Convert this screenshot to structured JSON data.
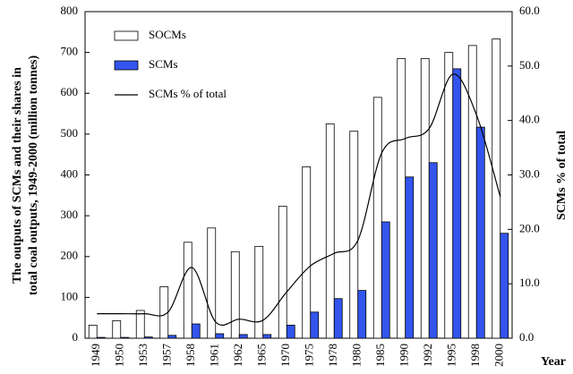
{
  "chart_data": {
    "type": "bar",
    "categories": [
      "1949",
      "1950",
      "1953",
      "1957",
      "1958",
      "1961",
      "1962",
      "1965",
      "1970",
      "1975",
      "1978",
      "1980",
      "1985",
      "1990",
      "1992",
      "1995",
      "1998",
      "2000"
    ],
    "series": [
      {
        "name": "SOCMs",
        "type": "bar",
        "color": "#ffffff",
        "values": [
          32,
          43,
          68,
          126,
          235,
          270,
          212,
          225,
          323,
          420,
          525,
          507,
          590,
          685,
          685,
          700,
          717,
          733
        ]
      },
      {
        "name": "SCMs",
        "type": "bar",
        "color": "#3355ee",
        "values": [
          2,
          2,
          3,
          7,
          35,
          11,
          9,
          9,
          32,
          64,
          97,
          117,
          285,
          395,
          430,
          660,
          517,
          257
        ]
      },
      {
        "name": "SCMs % of total",
        "type": "line",
        "axis": "y2",
        "color": "#000000",
        "values": [
          4.5,
          4.5,
          4.5,
          4.8,
          13,
          3,
          3.5,
          3.3,
          8.5,
          13.3,
          15.6,
          18,
          34,
          36.7,
          38.5,
          48.5,
          41,
          26
        ]
      }
    ],
    "ylabel": [
      "The outputs of SCMs and their shares in",
      "total coal outputs, 1949-2000 (million tonnes)"
    ],
    "y2label": "SCMs % of total",
    "xlabel": "Year",
    "ylim": [
      0,
      800
    ],
    "yticks": [
      0,
      100,
      200,
      300,
      400,
      500,
      600,
      700,
      800
    ],
    "y2lim": [
      0,
      60
    ],
    "y2ticks": [
      {
        "value": 0,
        "label": "0.0"
      },
      {
        "value": 10,
        "label": "10.0"
      },
      {
        "value": 20,
        "label": "20.0"
      },
      {
        "value": 30,
        "label": "30.0"
      },
      {
        "value": 40,
        "label": "40.0"
      },
      {
        "value": 50,
        "label": "50.0"
      },
      {
        "value": 60,
        "label": "60.0"
      }
    ],
    "legend": "top-left"
  }
}
